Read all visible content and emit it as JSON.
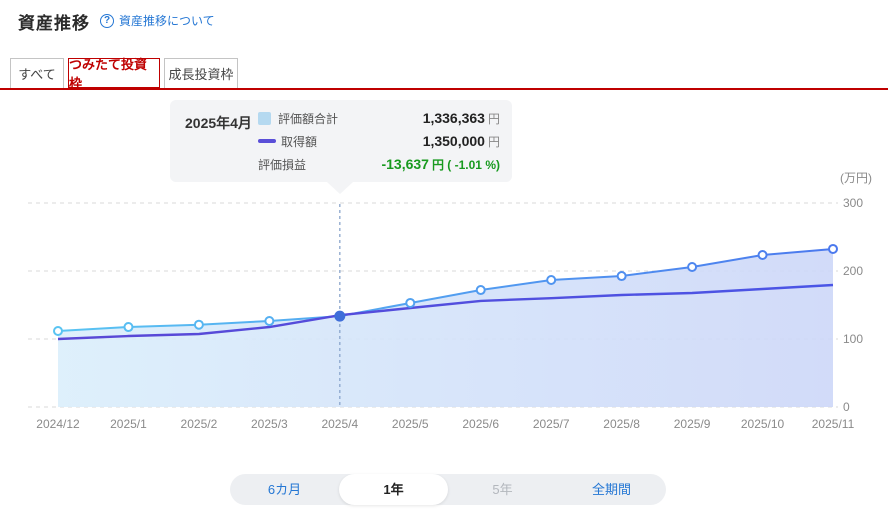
{
  "header": {
    "title": "資産推移",
    "help_icon": "?",
    "help_link": "資産推移について"
  },
  "tabs": [
    {
      "label": "すべて",
      "active": false
    },
    {
      "label": "つみたて投資枠",
      "active": true
    },
    {
      "label": "成長投資枠",
      "active": false
    }
  ],
  "tooltip": {
    "date": "2025年4月",
    "rows": [
      {
        "swatch": "area",
        "label": "評価額合計",
        "value": "1,336,363",
        "unit": "円",
        "negative": false
      },
      {
        "swatch": "line",
        "label": "取得額",
        "value": "1,350,000",
        "unit": "円",
        "negative": false
      },
      {
        "swatch": "none",
        "label": "評価損益",
        "value": "-13,637",
        "unit": "円 ( -1.01 %)",
        "negative": true
      }
    ]
  },
  "chart_data": {
    "type": "area",
    "x": [
      "2024/12",
      "2025/1",
      "2025/2",
      "2025/3",
      "2025/4",
      "2025/5",
      "2025/6",
      "2025/7",
      "2025/8",
      "2025/9",
      "2025/10",
      "2025/11"
    ],
    "series": [
      {
        "name": "評価額合計",
        "style": "area-markers",
        "values": [
          1118000,
          1176000,
          1210000,
          1265000,
          1336363,
          1530000,
          1720000,
          1868000,
          1926000,
          2059000,
          2235000,
          2324000
        ]
      },
      {
        "name": "取得額",
        "style": "line",
        "values": [
          1000000,
          1044000,
          1074000,
          1176000,
          1350000,
          1456000,
          1560000,
          1600000,
          1647000,
          1676000,
          1735000,
          1794000
        ]
      }
    ],
    "ylabel": "(万円)",
    "yticks": [
      0,
      100,
      200,
      300
    ],
    "ylim": [
      0,
      300
    ],
    "unit_divisor": 10000,
    "grid": true,
    "legend_position": "tooltip",
    "highlight_index": 4
  },
  "period_selector": [
    {
      "label": "6カ月",
      "state": "link"
    },
    {
      "label": "1年",
      "state": "active"
    },
    {
      "label": "5年",
      "state": "disabled"
    },
    {
      "label": "全期間",
      "state": "link"
    }
  ],
  "colors": {
    "accent_red": "#bf0000",
    "link_blue": "#2577d4",
    "loss_green": "#189a1f",
    "value_line_start": "#59c4f2",
    "value_line_end": "#4b79ee",
    "value_fill_start": "#daeefb",
    "value_fill_end": "#cdd7f8",
    "acq_line_start": "#5a47d5",
    "acq_line_end": "#4a55e6",
    "highlight_dot": "#3f6ed9",
    "crosshair": "#8aa6cc",
    "grid": "#d9d9d9",
    "axis_text": "#8a8a8a",
    "tooltip_swatch_area": "#b5d9f0",
    "tooltip_swatch_line": "#5a4fd8"
  }
}
